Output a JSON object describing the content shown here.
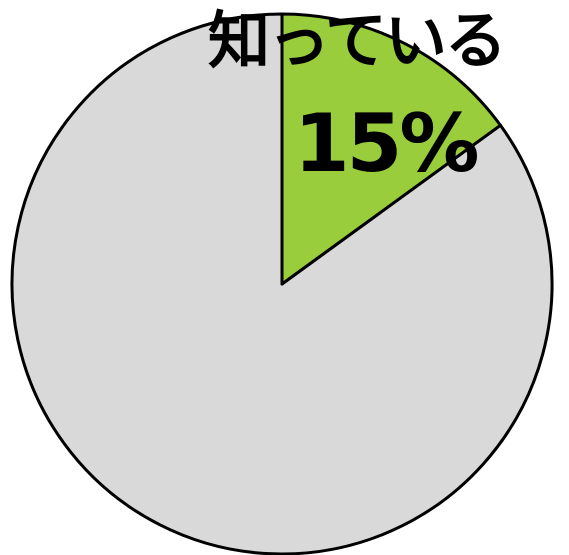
{
  "chart_data": {
    "type": "pie",
    "slices": [
      {
        "label": "知っている",
        "percent_label": "15%",
        "value": 15,
        "color": "#9acd3b"
      },
      {
        "label": "",
        "value": 85,
        "color": "#d9d9d9"
      }
    ]
  }
}
